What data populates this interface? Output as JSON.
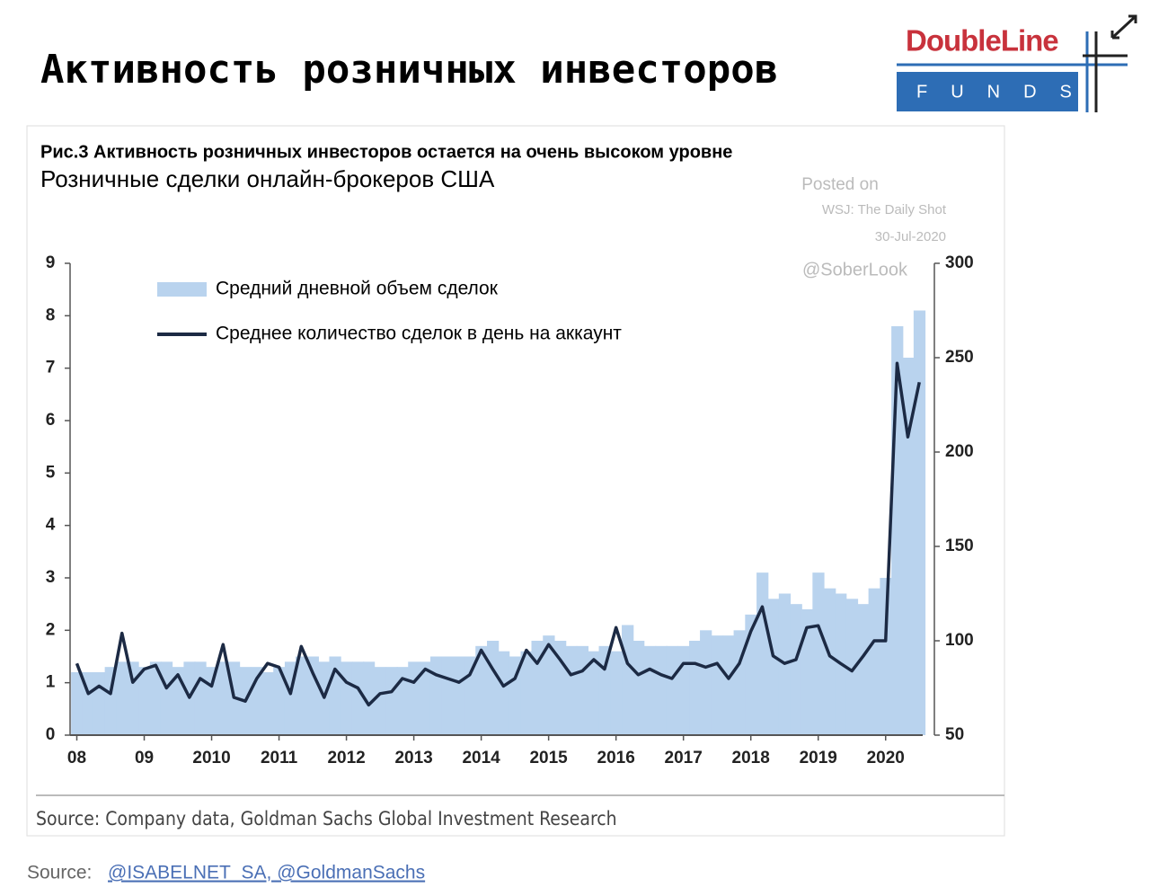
{
  "slide": {
    "title": "Активность розничных инвесторов",
    "logo_name": "DoubleLine",
    "logo_sub": "FUNDS",
    "source_label": "Source:",
    "source_links": "@ISABELNET_SA, @GoldmanSachs"
  },
  "chart_data": {
    "type": "bar-line",
    "title": "Рис.3 Активность розничных инвесторов остается на очень высоком уровне",
    "subtitle": "Розничные сделки онлайн-брокеров США",
    "annotations": [
      "Posted on",
      "WSJ: The Daily Shot",
      "30-Jul-2020",
      "@SoberLook"
    ],
    "source": "Source: Company data, Goldman Sachs Global Investment Research",
    "x": [
      2008.0,
      2008.17,
      2008.33,
      2008.5,
      2008.67,
      2008.83,
      2009.0,
      2009.17,
      2009.33,
      2009.5,
      2009.67,
      2009.83,
      2010.0,
      2010.17,
      2010.33,
      2010.5,
      2010.67,
      2010.83,
      2011.0,
      2011.17,
      2011.33,
      2011.5,
      2011.67,
      2011.83,
      2012.0,
      2012.17,
      2012.33,
      2012.5,
      2012.67,
      2012.83,
      2013.0,
      2013.17,
      2013.33,
      2013.5,
      2013.67,
      2013.83,
      2014.0,
      2014.17,
      2014.33,
      2014.5,
      2014.67,
      2014.83,
      2015.0,
      2015.17,
      2015.33,
      2015.5,
      2015.67,
      2015.83,
      2016.0,
      2016.17,
      2016.33,
      2016.5,
      2016.67,
      2016.83,
      2017.0,
      2017.17,
      2017.33,
      2017.5,
      2017.67,
      2017.83,
      2018.0,
      2018.17,
      2018.33,
      2018.5,
      2018.67,
      2018.83,
      2019.0,
      2019.17,
      2019.33,
      2019.5,
      2019.67,
      2019.83,
      2020.0,
      2020.17,
      2020.33,
      2020.5
    ],
    "series": [
      {
        "name": "Средний дневной объем сделок",
        "color": "#b9d3ee",
        "style": "bar",
        "values": [
          1.2,
          1.2,
          1.2,
          1.3,
          1.4,
          1.4,
          1.3,
          1.4,
          1.4,
          1.3,
          1.4,
          1.4,
          1.3,
          1.4,
          1.4,
          1.3,
          1.3,
          1.2,
          1.3,
          1.4,
          1.5,
          1.5,
          1.4,
          1.5,
          1.4,
          1.4,
          1.4,
          1.3,
          1.3,
          1.3,
          1.4,
          1.4,
          1.5,
          1.5,
          1.5,
          1.5,
          1.7,
          1.8,
          1.6,
          1.5,
          1.6,
          1.8,
          1.9,
          1.8,
          1.7,
          1.7,
          1.6,
          1.7,
          1.6,
          2.1,
          1.8,
          1.7,
          1.7,
          1.7,
          1.7,
          1.8,
          2.0,
          1.9,
          1.9,
          2.0,
          2.3,
          3.1,
          2.6,
          2.7,
          2.5,
          2.4,
          3.1,
          2.8,
          2.7,
          2.6,
          2.5,
          2.8,
          3.0,
          7.8,
          7.2,
          8.1
        ]
      },
      {
        "name": "Среднее количество сделок в день на аккаунт",
        "color": "#1c2a44",
        "style": "line",
        "axis": "y2",
        "values": [
          88,
          72,
          76,
          72,
          104,
          78,
          85,
          87,
          75,
          82,
          70,
          80,
          76,
          98,
          70,
          68,
          80,
          88,
          86,
          72,
          97,
          83,
          70,
          85,
          78,
          75,
          66,
          72,
          73,
          80,
          78,
          85,
          82,
          80,
          78,
          82,
          95,
          85,
          76,
          80,
          95,
          88,
          98,
          90,
          82,
          84,
          90,
          85,
          107,
          88,
          82,
          85,
          82,
          80,
          88,
          88,
          86,
          88,
          80,
          88,
          105,
          118,
          92,
          88,
          90,
          107,
          108,
          92,
          88,
          84,
          92,
          100,
          100,
          247,
          208,
          237
        ]
      }
    ],
    "xlim": [
      2007.9,
      2020.55
    ],
    "xticks": [
      {
        "value": 2008,
        "label": "08"
      },
      {
        "value": 2009,
        "label": "09"
      },
      2010,
      2011,
      2012,
      2013,
      2014,
      2015,
      2016,
      2017,
      2018,
      2019,
      2020
    ],
    "ylim": [
      0,
      9
    ],
    "yticks": [
      0,
      1,
      2,
      3,
      4,
      5,
      6,
      7,
      8,
      9
    ],
    "y2lim": [
      50,
      300
    ],
    "y2ticks": [
      50,
      100,
      150,
      200,
      250,
      300
    ],
    "grid": false,
    "legend": "top-left"
  }
}
